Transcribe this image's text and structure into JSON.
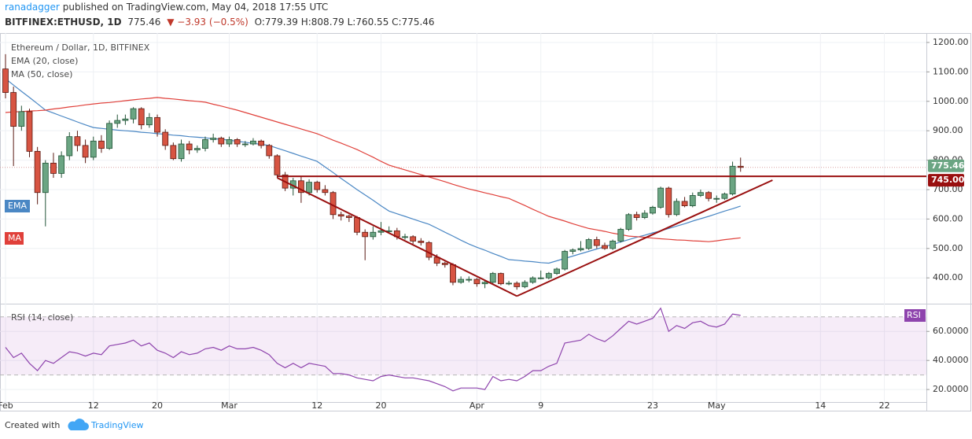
{
  "header": {
    "author": "ranadagger",
    "published": "published on TradingView.com, May 04, 2018 17:55 UTC",
    "symbol": "BITFINEX:ETHUSD, 1D",
    "price": "775.46",
    "change": "−3.93 (−0.5%)",
    "ohlc": [
      "O:779.39",
      "H:808.79",
      "L:760.55",
      "C:775.46"
    ]
  },
  "footer": {
    "text": "Created with",
    "brand": "TradingView"
  },
  "chart_data": {
    "type": "candlestick",
    "title": "Ethereum / Dollar, 1D, BITFINEX",
    "categories": [
      "Feb",
      null,
      null,
      null,
      null,
      null,
      null,
      null,
      null,
      null,
      null,
      "12",
      null,
      null,
      null,
      null,
      null,
      null,
      null,
      "20",
      null,
      null,
      null,
      null,
      null,
      null,
      null,
      null,
      "Mar",
      null,
      null,
      null,
      null,
      null,
      null,
      null,
      null,
      null,
      null,
      "12",
      null,
      null,
      null,
      null,
      null,
      null,
      null,
      "20",
      null,
      null,
      null,
      null,
      null,
      null,
      null,
      null,
      null,
      null,
      null,
      "Apr",
      null,
      null,
      null,
      null,
      null,
      null,
      null,
      "9",
      null,
      null,
      null,
      null,
      null,
      null,
      null,
      null,
      null,
      null,
      null,
      null,
      null,
      "23",
      null,
      null,
      null,
      null,
      null,
      null,
      null,
      "May",
      null,
      null,
      null,
      null,
      null,
      null,
      null,
      null,
      null,
      null,
      null,
      null,
      "14",
      null,
      null,
      null,
      null,
      null,
      null,
      null,
      "22",
      null,
      null,
      null,
      null
    ],
    "open": [
      1110,
      1030,
      915,
      965,
      830,
      690,
      790,
      755,
      815,
      880,
      850,
      810,
      865,
      840,
      925,
      935,
      940,
      975,
      920,
      945,
      895,
      850,
      805,
      855,
      835,
      840,
      870,
      875,
      855,
      870,
      855,
      855,
      865,
      850,
      815,
      750,
      705,
      730,
      690,
      725,
      700,
      690,
      615,
      610,
      605,
      555,
      540,
      555,
      560,
      560,
      540,
      540,
      525,
      520,
      470,
      450,
      445,
      385,
      395,
      395,
      380,
      385,
      415,
      380,
      382,
      370,
      385,
      400,
      400,
      415,
      430,
      490,
      495,
      500,
      530,
      510,
      500,
      525,
      565,
      615,
      605,
      620,
      640,
      705,
      615,
      660,
      645,
      680,
      690,
      670,
      670,
      685,
      779.39,
      null,
      null,
      null,
      null,
      null,
      null,
      null,
      null,
      null,
      null,
      null,
      null,
      null,
      null,
      null,
      null,
      null,
      null,
      null,
      null,
      null,
      null
    ],
    "high": [
      1160,
      1050,
      985,
      975,
      845,
      800,
      825,
      830,
      895,
      900,
      870,
      880,
      885,
      935,
      955,
      955,
      980,
      980,
      960,
      955,
      905,
      860,
      870,
      865,
      850,
      880,
      890,
      880,
      880,
      875,
      865,
      875,
      870,
      855,
      820,
      760,
      740,
      745,
      735,
      730,
      715,
      695,
      625,
      615,
      610,
      565,
      575,
      590,
      575,
      570,
      550,
      545,
      535,
      525,
      480,
      455,
      450,
      405,
      405,
      400,
      390,
      420,
      418,
      390,
      388,
      392,
      405,
      425,
      420,
      435,
      495,
      500,
      525,
      535,
      540,
      520,
      530,
      570,
      620,
      625,
      630,
      645,
      710,
      710,
      670,
      675,
      690,
      700,
      695,
      680,
      690,
      795,
      808.79,
      null,
      null,
      null,
      null,
      null,
      null,
      null,
      null,
      null,
      null,
      null,
      null,
      null,
      null,
      null,
      null,
      null,
      null,
      null,
      null,
      null,
      null
    ],
    "low": [
      1010,
      780,
      900,
      810,
      650,
      575,
      740,
      740,
      800,
      830,
      790,
      800,
      825,
      835,
      910,
      920,
      925,
      905,
      910,
      880,
      835,
      800,
      795,
      820,
      825,
      830,
      860,
      845,
      845,
      845,
      845,
      850,
      840,
      805,
      740,
      695,
      680,
      655,
      680,
      690,
      680,
      600,
      595,
      590,
      545,
      460,
      530,
      545,
      550,
      530,
      530,
      515,
      510,
      460,
      440,
      435,
      375,
      380,
      385,
      370,
      365,
      380,
      375,
      375,
      360,
      365,
      380,
      395,
      395,
      410,
      425,
      480,
      490,
      495,
      500,
      495,
      495,
      520,
      560,
      595,
      600,
      615,
      635,
      605,
      610,
      640,
      640,
      675,
      660,
      655,
      665,
      680,
      760.55,
      null,
      null,
      null,
      null,
      null,
      null,
      null,
      null,
      null,
      null,
      null,
      null,
      null,
      null,
      null,
      null,
      null,
      null,
      null,
      null,
      null,
      null
    ],
    "close": [
      1030,
      915,
      965,
      830,
      690,
      790,
      755,
      815,
      880,
      850,
      810,
      865,
      840,
      925,
      935,
      940,
      975,
      920,
      945,
      895,
      850,
      805,
      855,
      835,
      840,
      870,
      875,
      855,
      870,
      855,
      855,
      865,
      850,
      815,
      750,
      705,
      730,
      690,
      725,
      700,
      690,
      615,
      610,
      605,
      555,
      540,
      555,
      560,
      560,
      540,
      540,
      525,
      520,
      470,
      450,
      445,
      385,
      395,
      395,
      380,
      385,
      415,
      380,
      382,
      370,
      385,
      400,
      400,
      415,
      430,
      490,
      495,
      500,
      530,
      510,
      500,
      525,
      565,
      615,
      605,
      620,
      640,
      705,
      615,
      660,
      645,
      680,
      690,
      670,
      670,
      685,
      779.39,
      775.46,
      null,
      null,
      null,
      null,
      null,
      null,
      null,
      null,
      null,
      null,
      null,
      null,
      null,
      null,
      null,
      null,
      null,
      null,
      null,
      null,
      null,
      null
    ],
    "up_color": "#6ba583",
    "down_color": "#d75442",
    "ylim": [
      315,
      1232
    ],
    "yticks": [
      {
        "value": 400,
        "label": "400.00"
      },
      {
        "value": 500,
        "label": "500.00"
      },
      {
        "value": 600,
        "label": "600.00"
      },
      {
        "value": 700,
        "label": "700.00"
      },
      {
        "value": 800,
        "label": "800.00"
      },
      {
        "value": 900,
        "label": "900.00"
      },
      {
        "value": 1000,
        "label": "1000.00"
      },
      {
        "value": 1100,
        "label": "1100.00"
      },
      {
        "value": 1200,
        "label": "1200.00"
      }
    ],
    "grid": true,
    "series": [
      {
        "name": "EMA (20, close)",
        "tag": "EMA",
        "color": "#4a87c4",
        "values": [
          1077,
          1055,
          1034,
          1013,
          992,
          970,
          960,
          950,
          940,
          930,
          920,
          911,
          908,
          905,
          902,
          900,
          898,
          895,
          893,
          890,
          888,
          885,
          883,
          880,
          878,
          876,
          873,
          871,
          868,
          864,
          861,
          857,
          854,
          850,
          841,
          832,
          823,
          814,
          805,
          796,
          777,
          758,
          738,
          719,
          700,
          682,
          664,
          645,
          627,
          618,
          609,
          600,
          591,
          582,
          569,
          555,
          542,
          528,
          515,
          504,
          494,
          483,
          473,
          462,
          460,
          457,
          455,
          452,
          450,
          458,
          466,
          474,
          482,
          490,
          498,
          506,
          514,
          522,
          530,
          538,
          545,
          553,
          560,
          568,
          576,
          584,
          593,
          601,
          609,
          618,
          627,
          635,
          644,
          null,
          null,
          null,
          null,
          null,
          null,
          null,
          null,
          null,
          null,
          null,
          null,
          null,
          null,
          null,
          null,
          null,
          null,
          null,
          null,
          null,
          null
        ]
      },
      {
        "name": "MA (50, close)",
        "tag": "MA",
        "color": "#e0403a",
        "values": [
          962,
          964,
          965,
          967,
          968,
          970,
          974,
          977,
          981,
          984,
          988,
          991,
          994,
          996,
          999,
          1002,
          1005,
          1008,
          1010,
          1013,
          1010,
          1008,
          1005,
          1002,
          1000,
          997,
          990,
          984,
          977,
          970,
          962,
          954,
          946,
          938,
          930,
          922,
          914,
          906,
          898,
          890,
          879,
          868,
          858,
          847,
          836,
          823,
          810,
          796,
          783,
          775,
          767,
          759,
          751,
          743,
          735,
          727,
          718,
          710,
          702,
          696,
          689,
          683,
          676,
          670,
          658,
          646,
          633,
          621,
          609,
          601,
          593,
          584,
          576,
          568,
          563,
          558,
          552,
          547,
          542,
          540,
          538,
          535,
          533,
          531,
          529,
          528,
          526,
          525,
          523,
          526,
          530,
          533,
          536,
          null,
          null,
          null,
          null,
          null,
          null,
          null,
          null,
          null,
          null,
          null,
          null,
          null,
          null,
          null,
          null,
          null,
          null,
          null,
          null,
          null,
          null
        ]
      }
    ],
    "last_price": {
      "value": 775.46,
      "label": "775.46",
      "color": "#6ba583"
    },
    "hline": {
      "value": 745,
      "label": "745.00",
      "start": 34,
      "color": "#990f0f"
    },
    "trendlines": [
      {
        "start": 34,
        "end": 64,
        "from": 740,
        "to": 338,
        "color": "#990f0f"
      },
      {
        "start": 64,
        "end": 96,
        "from": 338,
        "to": 732,
        "color": "#990f0f"
      }
    ],
    "rsi": {
      "name": "RSI (14, close)",
      "tag": "RSI",
      "color": "#8e44ad",
      "values": [
        49,
        42,
        45,
        38,
        33,
        40,
        38,
        42,
        46,
        45,
        43,
        45,
        44,
        50,
        51,
        52,
        54,
        50,
        52,
        47,
        45,
        42,
        46,
        44,
        45,
        48,
        49,
        47,
        50,
        48,
        48,
        49,
        47,
        44,
        38,
        35,
        38,
        35,
        38,
        37,
        36,
        31,
        31,
        30,
        28,
        27,
        26,
        29,
        30,
        29,
        28,
        28,
        27,
        26,
        24,
        22,
        19,
        21,
        21,
        21,
        20,
        29,
        26,
        27,
        26,
        29,
        33,
        33,
        36,
        38,
        52,
        53,
        54,
        58,
        55,
        53,
        57,
        62,
        67,
        65,
        67,
        69,
        76,
        60,
        64,
        62,
        66,
        67,
        64,
        63,
        65,
        72,
        71,
        null,
        null,
        null,
        null,
        null,
        null,
        null,
        null,
        null,
        null,
        null,
        null,
        null,
        null,
        null,
        null,
        null,
        null,
        null,
        null,
        null,
        null
      ],
      "ylim": [
        13,
        78
      ],
      "yticks": [
        {
          "value": 20,
          "label": "20.0000"
        },
        {
          "value": 40,
          "label": "40.0000"
        },
        {
          "value": 60,
          "label": "60.0000"
        }
      ],
      "bands": [
        30,
        70
      ]
    }
  }
}
